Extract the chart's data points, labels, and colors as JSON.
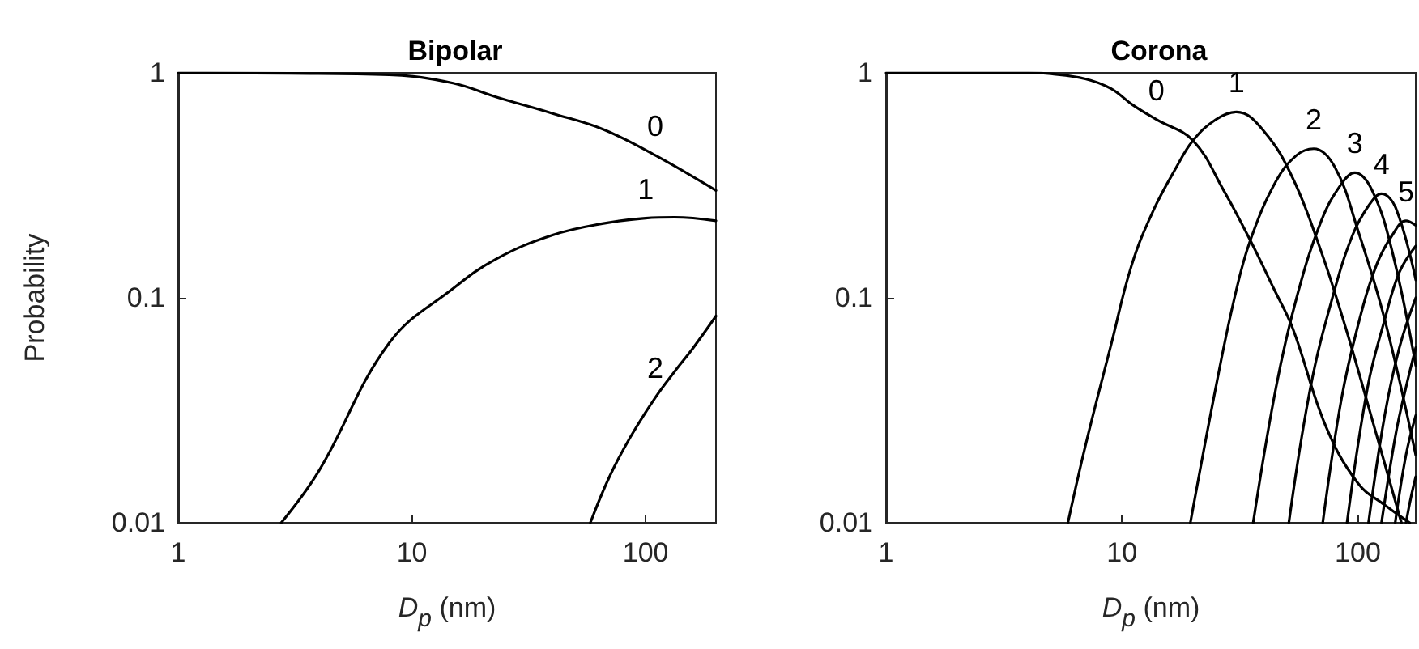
{
  "chart_data": [
    {
      "type": "line",
      "title": "Bipolar",
      "xlabel": "D$_{p}$ (nm)",
      "ylabel": "Probability",
      "log": "xy",
      "grid": false,
      "xlim": [
        1,
        200
      ],
      "xticks": [
        1,
        10,
        100
      ],
      "ylim": [
        0.01,
        1
      ],
      "yticks": [
        0.01,
        0.1,
        1
      ],
      "annotations": [
        {
          "text": "0",
          "x": 110,
          "y": 0.43
        },
        {
          "text": "1",
          "x": 100,
          "y": 0.226
        },
        {
          "text": "2",
          "x": 110,
          "y": 0.036
        }
      ],
      "series": [
        {
          "color": "#000000",
          "x": [
            1,
            3,
            8,
            15,
            23,
            40,
            66,
            110,
            200
          ],
          "values": [
            1,
            0.995,
            0.98,
            0.9,
            0.78,
            0.66,
            0.56,
            0.43,
            0.3
          ]
        },
        {
          "color": "#000000",
          "x": [
            2.76,
            4,
            8,
            15,
            23,
            40,
            66,
            100,
            133,
            200
          ],
          "values": [
            0.01,
            0.017,
            0.063,
            0.11,
            0.149,
            0.19,
            0.214,
            0.226,
            0.228,
            0.22
          ]
        },
        {
          "color": "#000000",
          "x": [
            58,
            70,
            86,
            110,
            133,
            160,
            200
          ],
          "values": [
            0.01,
            0.016,
            0.024,
            0.036,
            0.047,
            0.06,
            0.083
          ]
        }
      ]
    },
    {
      "type": "line",
      "title": "Corona",
      "xlabel": "D$_{p}$ (nm)",
      "log": "xy",
      "grid": false,
      "xlim": [
        1,
        176
      ],
      "xticks": [
        1,
        10,
        100
      ],
      "ylim": [
        0.01,
        1
      ],
      "yticks": [
        0.01,
        0.1,
        1
      ],
      "annotations": [
        {
          "text": "0",
          "x": 14,
          "y": 0.62
        },
        {
          "text": "1",
          "x": 30.6,
          "y": 0.67
        },
        {
          "text": "2",
          "x": 65,
          "y": 0.46
        },
        {
          "text": "3",
          "x": 97,
          "y": 0.36
        },
        {
          "text": "4",
          "x": 126,
          "y": 0.29
        },
        {
          "text": "5",
          "x": 160,
          "y": 0.22
        }
      ],
      "series": [
        {
          "color": "#000000",
          "x": [
            1,
            4,
            5,
            7,
            9,
            11.1,
            14,
            20,
            27,
            35,
            44,
            53,
            73,
            100,
            130,
            166
          ],
          "values": [
            1,
            1,
            0.99,
            0.94,
            0.85,
            0.72,
            0.62,
            0.5,
            0.3,
            0.18,
            0.11,
            0.073,
            0.027,
            0.015,
            0.012,
            0.01
          ]
        },
        {
          "color": "#000000",
          "x": [
            5.9,
            7,
            9,
            11,
            13.6,
            17,
            20,
            25,
            30.6,
            40,
            53,
            70,
            89,
            117,
            153
          ],
          "values": [
            0.01,
            0.022,
            0.062,
            0.14,
            0.245,
            0.38,
            0.5,
            0.62,
            0.67,
            0.55,
            0.34,
            0.16,
            0.073,
            0.027,
            0.01
          ]
        },
        {
          "color": "#000000",
          "x": [
            19.5,
            25,
            30,
            35,
            45,
            55,
            65,
            80,
            100,
            130,
            176
          ],
          "values": [
            0.01,
            0.04,
            0.1,
            0.18,
            0.33,
            0.43,
            0.46,
            0.38,
            0.2,
            0.08,
            0.02
          ]
        },
        {
          "color": "#000000",
          "x": [
            36,
            45,
            55,
            70,
            85,
            97,
            115,
            140,
            176
          ],
          "values": [
            0.01,
            0.04,
            0.1,
            0.22,
            0.32,
            0.36,
            0.3,
            0.16,
            0.05
          ]
        },
        {
          "color": "#000000",
          "x": [
            51,
            63,
            78,
            95,
            112,
            126,
            145,
            176
          ],
          "values": [
            0.01,
            0.04,
            0.1,
            0.19,
            0.26,
            0.29,
            0.25,
            0.12
          ]
        },
        {
          "color": "#000000",
          "x": [
            71,
            85,
            100,
            120,
            140,
            160,
            176
          ],
          "values": [
            0.01,
            0.035,
            0.075,
            0.14,
            0.19,
            0.22,
            0.21
          ]
        },
        {
          "color": "#000000",
          "x": [
            90,
            110,
            130,
            150,
            176
          ],
          "values": [
            0.01,
            0.04,
            0.08,
            0.13,
            0.17
          ]
        },
        {
          "color": "#000000",
          "x": [
            111,
            130,
            150,
            176
          ],
          "values": [
            0.01,
            0.03,
            0.06,
            0.1
          ]
        },
        {
          "color": "#000000",
          "x": [
            126,
            145,
            160,
            176
          ],
          "values": [
            0.01,
            0.025,
            0.04,
            0.06
          ]
        },
        {
          "color": "#000000",
          "x": [
            144,
            160,
            176
          ],
          "values": [
            0.01,
            0.02,
            0.03
          ]
        },
        {
          "color": "#000000",
          "x": [
            160,
            168,
            176
          ],
          "values": [
            0.01,
            0.013,
            0.016
          ]
        }
      ]
    }
  ]
}
